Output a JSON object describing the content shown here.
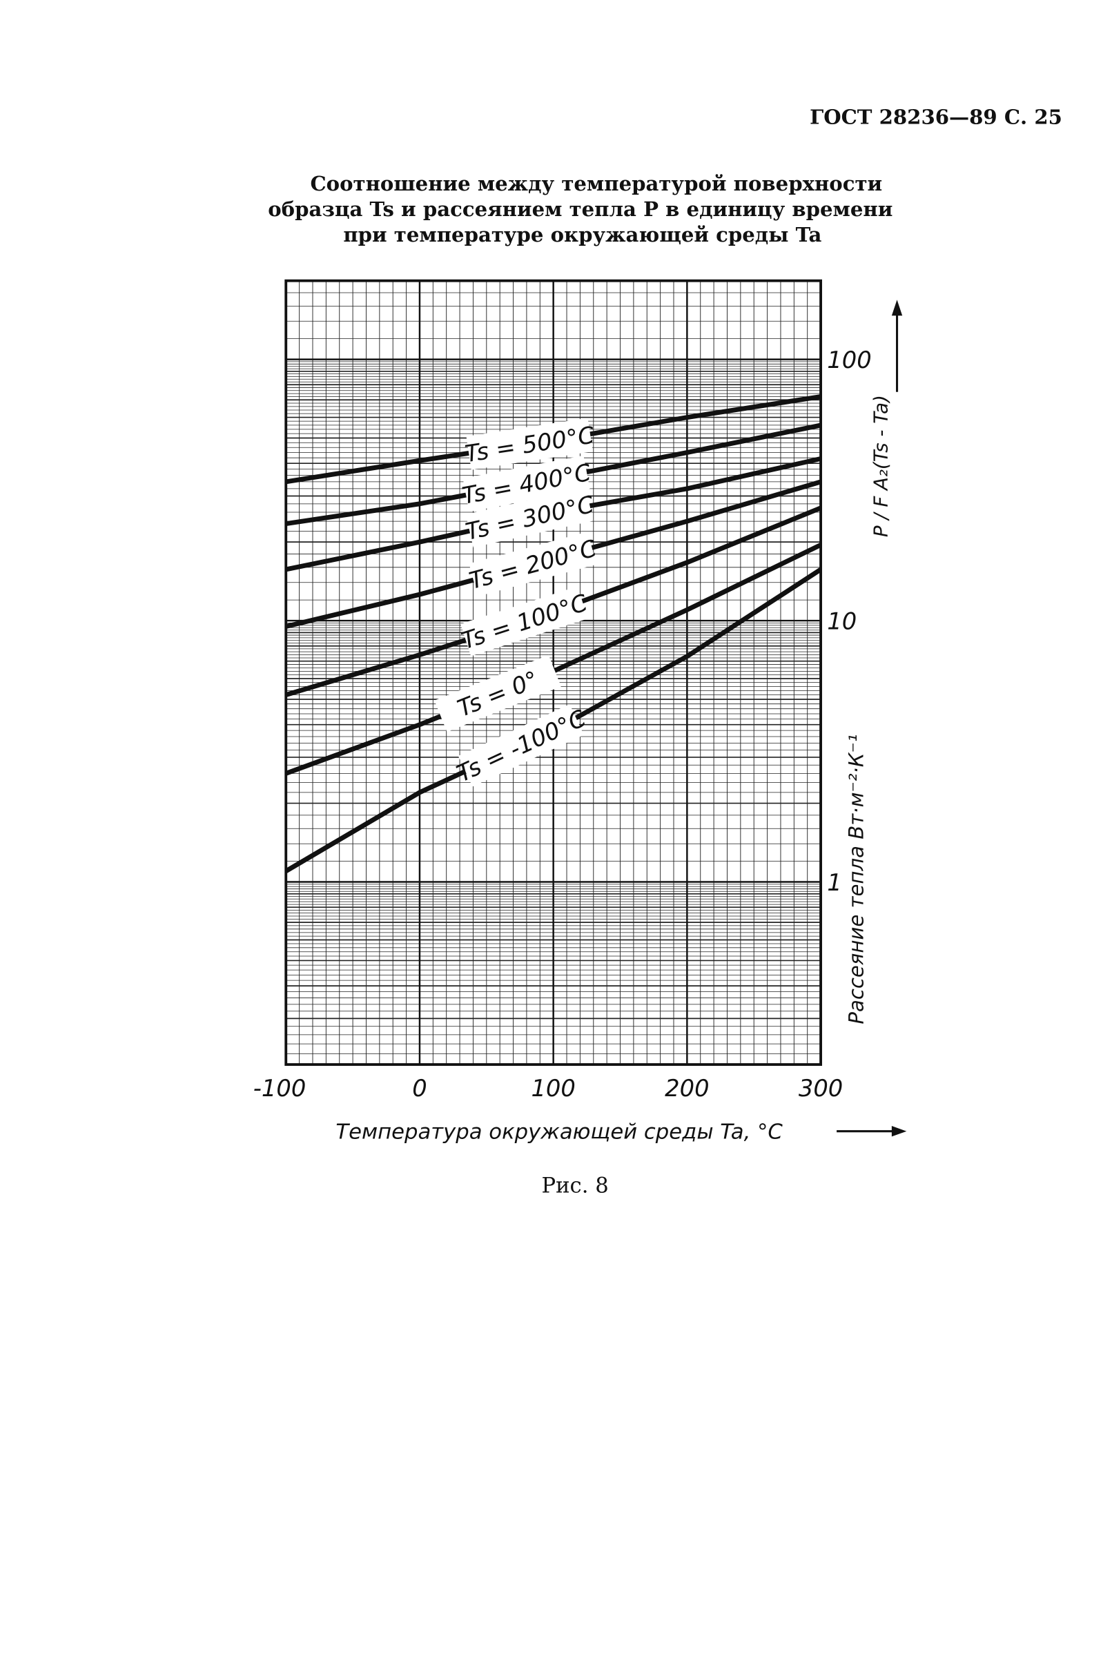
{
  "header": "ГОСТ 28236—89 С. 25",
  "chart_data": {
    "type": "line",
    "title": [
      "Соотношение между температурой поверхности",
      "образца Ts и рассеянием тепла P в единицу времени",
      "при температуре окружающей среды Ta"
    ],
    "x": [
      -100,
      0,
      100,
      200,
      300
    ],
    "series": [
      {
        "name": "Ts = 500°C",
        "values": [
          34,
          41,
          49,
          60,
          72
        ]
      },
      {
        "name": "Ts = 400°C",
        "values": [
          23.5,
          28,
          35,
          44,
          56
        ]
      },
      {
        "name": "Ts = 300°C",
        "values": [
          15.7,
          20,
          26,
          32,
          41.7
        ]
      },
      {
        "name": "Ts = 200°C",
        "values": [
          9.5,
          12.6,
          17.3,
          24,
          34
        ]
      },
      {
        "name": "Ts = 100°C",
        "values": [
          5.2,
          7.4,
          10.8,
          16.7,
          27
        ]
      },
      {
        "name": "Ts = 0°",
        "values": [
          2.6,
          4,
          6.4,
          11,
          19.5
        ]
      },
      {
        "name": "Ts = -100°C",
        "values": [
          1.1,
          2.2,
          3.8,
          7.3,
          15.7
        ]
      }
    ],
    "color": "#111111",
    "xlim": [
      -100,
      300
    ],
    "ylim": [
      0.2,
      200
    ],
    "yscale": "log",
    "xticks": [
      -100,
      0,
      100,
      200,
      300
    ],
    "yticks": [
      1,
      10,
      100
    ],
    "grid": true,
    "y_label": "Рассеяние тепла Вт·м⁻²·К⁻¹",
    "y_label_right": "P / F A₂(Ts - Ta)",
    "x_label": "Температура окружающей среды Ta, °С"
  },
  "caption": "Рис. 8"
}
